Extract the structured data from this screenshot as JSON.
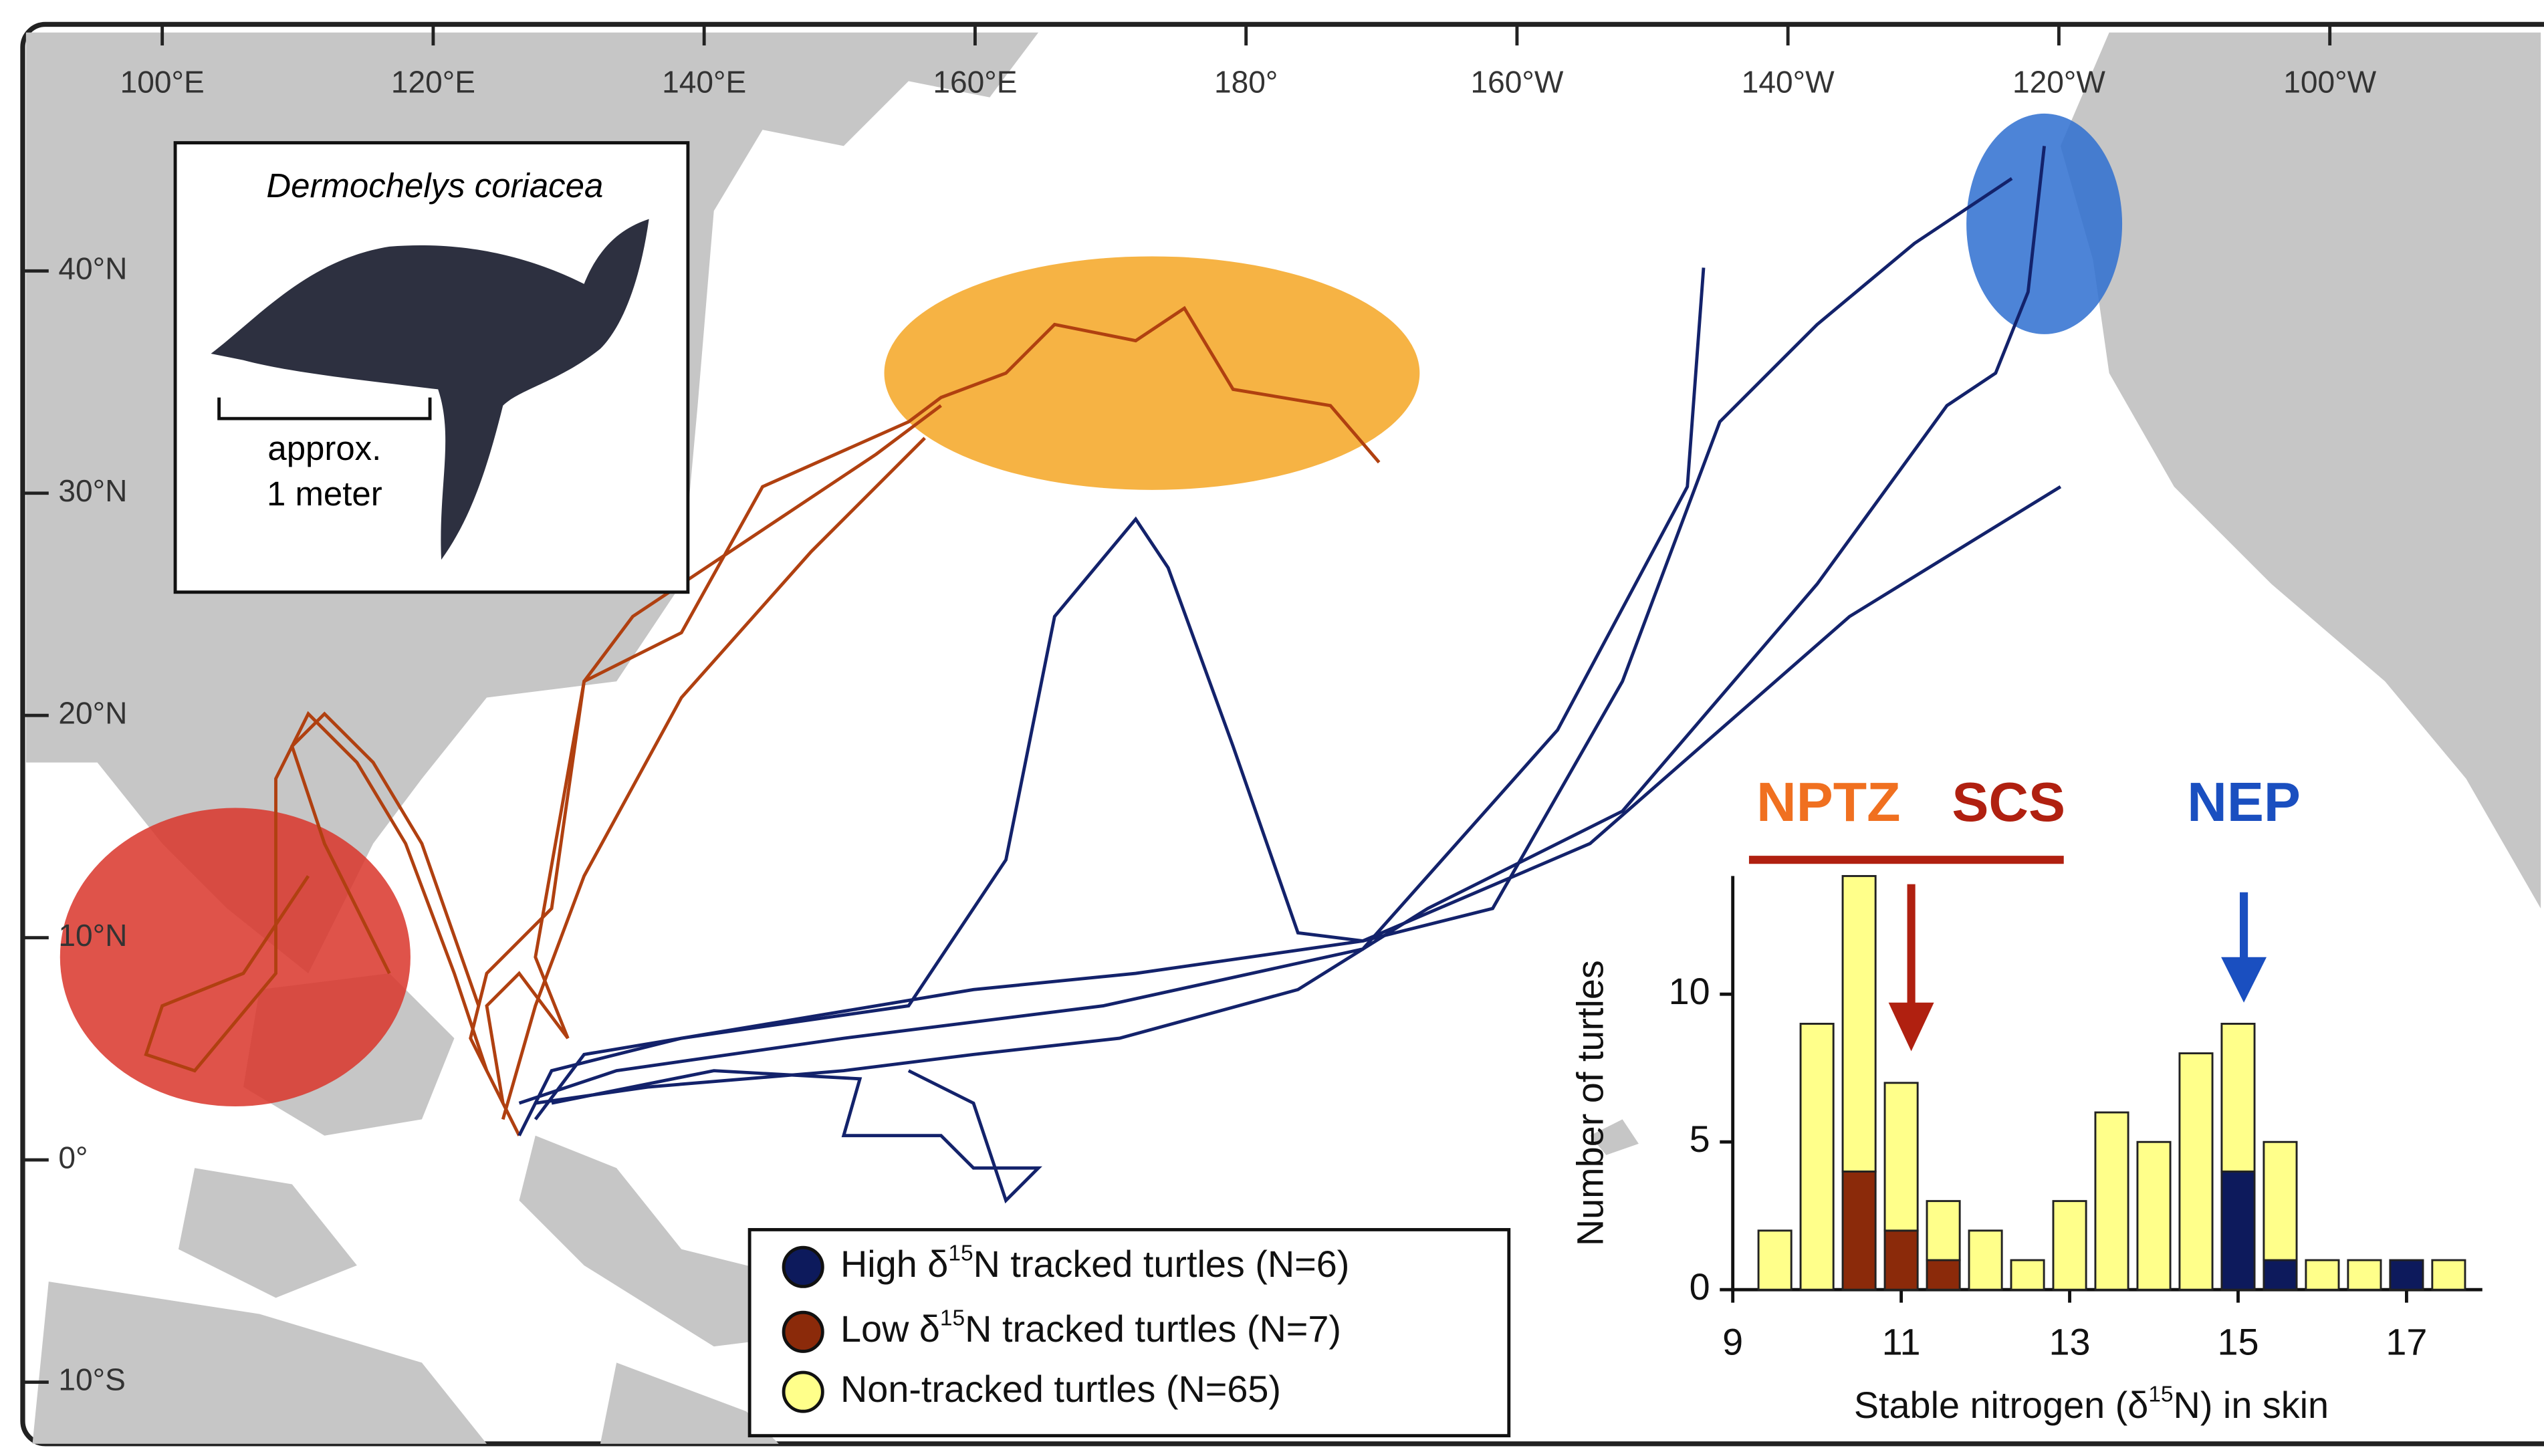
{
  "map": {
    "lon_ticks": [
      {
        "value": 100,
        "label": "100°E"
      },
      {
        "value": 120,
        "label": "120°E"
      },
      {
        "value": 140,
        "label": "140°E"
      },
      {
        "value": 160,
        "label": "160°E"
      },
      {
        "value": 180,
        "label": "180°"
      },
      {
        "value": 200,
        "label": "160°W"
      },
      {
        "value": 220,
        "label": "140°W"
      },
      {
        "value": 240,
        "label": "120°W"
      },
      {
        "value": 260,
        "label": "100°W"
      }
    ],
    "lat_ticks": [
      {
        "value": 40,
        "label": "40°N"
      },
      {
        "value": 30,
        "label": "30°N"
      },
      {
        "value": 20,
        "label": "20°N"
      },
      {
        "value": 10,
        "label": "10°N"
      },
      {
        "value": 0,
        "label": "0°"
      },
      {
        "value": -10,
        "label": "10°S"
      }
    ],
    "inset": {
      "species": "Dermochelys coriacea",
      "scale_label": [
        "approx.",
        "1 meter"
      ]
    }
  },
  "chart_data": {
    "type": "bar",
    "stacked": true,
    "x": [
      9.5,
      10,
      10.5,
      11,
      11.5,
      12,
      12.5,
      13,
      13.5,
      14,
      14.5,
      15,
      15.5,
      16,
      16.5,
      17,
      17.5
    ],
    "series": [
      {
        "name": "High δ15N tracked turtles (N=6)",
        "color": "#0d1a5c",
        "values": [
          0,
          0,
          0,
          0,
          0,
          0,
          0,
          0,
          0,
          0,
          0,
          4,
          1,
          0,
          0,
          1,
          0
        ]
      },
      {
        "name": "Low δ15N tracked turtles (N=7)",
        "color": "#8b2a0a",
        "values": [
          0,
          0,
          4,
          2,
          1,
          0,
          0,
          0,
          0,
          0,
          0,
          0,
          0,
          0,
          0,
          0,
          0
        ]
      },
      {
        "name": "Non-tracked turtles (N=65)",
        "color": "#ffff8a",
        "values": [
          2,
          9,
          10,
          5,
          2,
          2,
          1,
          3,
          6,
          5,
          8,
          5,
          4,
          1,
          1,
          0,
          1
        ]
      }
    ],
    "xlim": [
      9,
      17.9
    ],
    "xticks": [
      9,
      11,
      13,
      15,
      17
    ],
    "ylim": [
      0,
      14
    ],
    "yticks": [
      0,
      5,
      10
    ],
    "x_label": "Stable nitrogen (δ15N) in skin",
    "y_label": "Number of turtles",
    "annotations": [
      "NPTZ",
      "SCS",
      "NEP"
    ]
  }
}
